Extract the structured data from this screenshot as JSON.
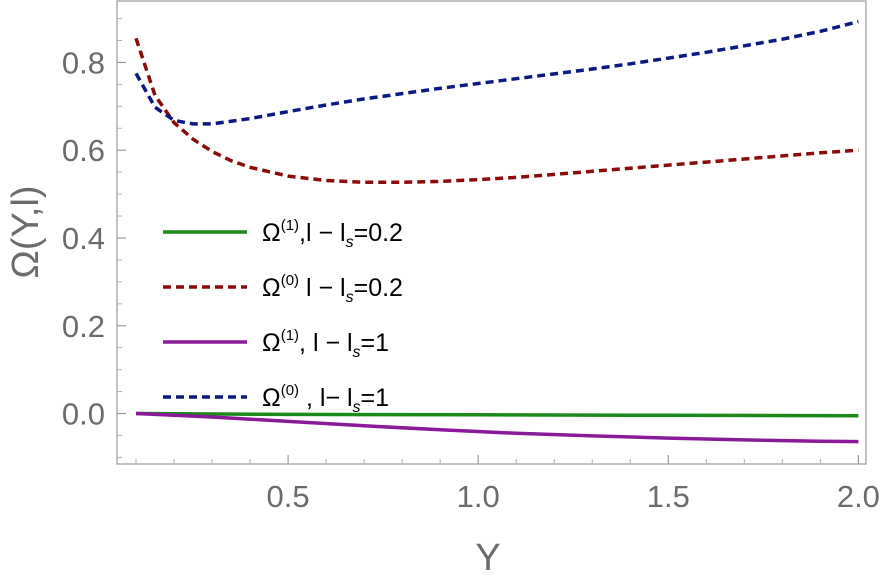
{
  "chart_data": {
    "type": "line",
    "title": "",
    "xlabel": "Y",
    "ylabel": "Ω(Y,l)",
    "xlim": [
      0.05,
      2.02
    ],
    "ylim": [
      -0.115,
      0.94
    ],
    "xticks": [
      0.5,
      1.0,
      1.5,
      2.0
    ],
    "xtick_labels": [
      "0.5",
      "1.0",
      "1.5",
      "2.0"
    ],
    "yticks": [
      0.0,
      0.2,
      0.4,
      0.6,
      0.8
    ],
    "ytick_labels": [
      "0.0",
      "0.2",
      "0.4",
      "0.6",
      "0.8"
    ],
    "grid": false,
    "frame": true,
    "legend_position": "center-left",
    "series": [
      {
        "name": "Ω(1),l − ls=0.2",
        "legend": {
          "main": "Ω",
          "sup": "(1)",
          "pre": ",l − l",
          "sub": "s",
          "post": "=0.2"
        },
        "color": "#1a8a1a",
        "style": "solid",
        "x": [
          0.1,
          0.5,
          1.0,
          1.5,
          2.0
        ],
        "y": [
          0.0,
          -0.002,
          -0.003,
          -0.004,
          -0.005
        ]
      },
      {
        "name": "Ω(0) l − ls=0.2",
        "legend": {
          "main": "Ω",
          "sup": "(0)",
          "pre": " l − l",
          "sub": "s",
          "post": "=0.2"
        },
        "color": "#8b0a0a",
        "style": "dashed",
        "x": [
          0.1,
          0.15,
          0.2,
          0.25,
          0.3,
          0.35,
          0.4,
          0.5,
          0.6,
          0.7,
          0.8,
          0.9,
          1.0,
          1.1,
          1.2,
          1.3,
          1.4,
          1.5,
          1.6,
          1.7,
          1.8,
          1.9,
          2.0
        ],
        "y": [
          0.855,
          0.725,
          0.663,
          0.625,
          0.597,
          0.576,
          0.561,
          0.541,
          0.531,
          0.527,
          0.527,
          0.529,
          0.533,
          0.538,
          0.545,
          0.552,
          0.559,
          0.566,
          0.573,
          0.58,
          0.587,
          0.594,
          0.6
        ]
      },
      {
        "name": "Ω(1), l − ls=1",
        "legend": {
          "main": "Ω",
          "sup": "(1)",
          "pre": ", l − l",
          "sub": "s",
          "post": "=1"
        },
        "color": "#8b1a9b",
        "style": "solid",
        "x": [
          0.1,
          0.3,
          0.5,
          0.7,
          0.9,
          1.1,
          1.3,
          1.5,
          1.7,
          1.9,
          2.0
        ],
        "y": [
          0.0,
          -0.008,
          -0.018,
          -0.028,
          -0.037,
          -0.045,
          -0.051,
          -0.056,
          -0.06,
          -0.063,
          -0.064
        ]
      },
      {
        "name": "Ω(0) , l− ls=1",
        "legend": {
          "main": "Ω",
          "sup": "(0)",
          "pre": " , l− l",
          "sub": "s",
          "post": "=1"
        },
        "color": "#0a1a80",
        "style": "dashed",
        "x": [
          0.1,
          0.15,
          0.2,
          0.25,
          0.3,
          0.4,
          0.5,
          0.6,
          0.7,
          0.8,
          0.9,
          1.0,
          1.1,
          1.2,
          1.3,
          1.4,
          1.5,
          1.6,
          1.7,
          1.8,
          1.9,
          2.0
        ],
        "y": [
          0.775,
          0.698,
          0.668,
          0.66,
          0.66,
          0.672,
          0.688,
          0.703,
          0.717,
          0.729,
          0.741,
          0.752,
          0.763,
          0.774,
          0.785,
          0.797,
          0.81,
          0.823,
          0.838,
          0.853,
          0.871,
          0.893
        ]
      }
    ]
  }
}
